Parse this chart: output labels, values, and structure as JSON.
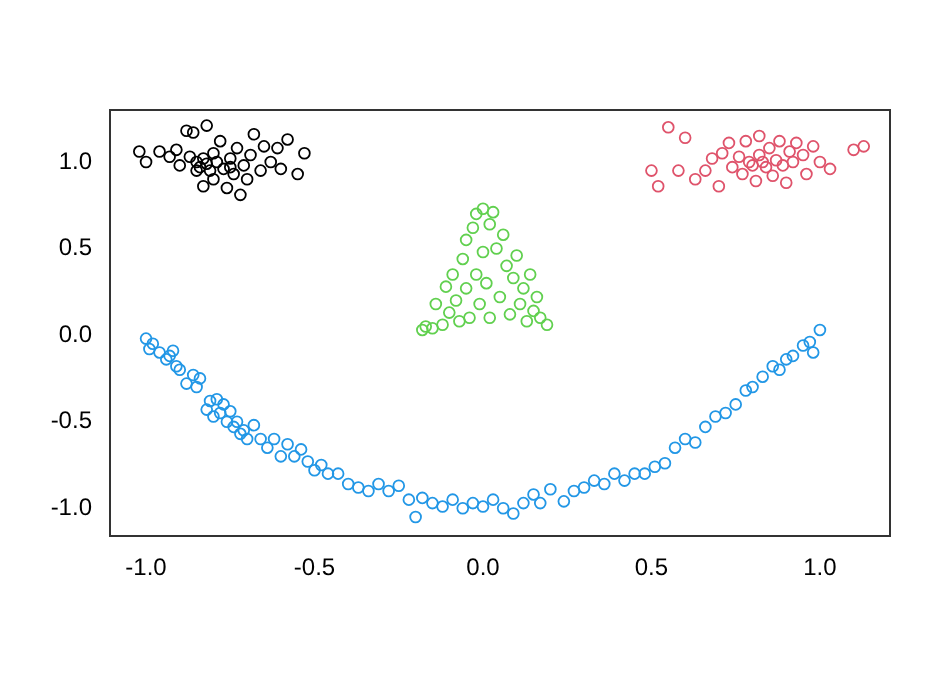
{
  "chart_data": {
    "type": "scatter",
    "marker": "circle",
    "grid": false,
    "legend": false,
    "xlim": [
      -1.107,
      1.208
    ],
    "ylim": [
      -1.16,
      1.3
    ],
    "xticks": [
      {
        "value": -1,
        "label": "-1.0"
      },
      -0.5,
      {
        "value": 0,
        "label": "0.0"
      },
      0.5,
      {
        "value": 1,
        "label": "1.0"
      }
    ],
    "yticks": [
      {
        "value": -1,
        "label": "-1.0"
      },
      -0.5,
      {
        "value": 0,
        "label": "0.0"
      },
      0.5,
      {
        "value": 1,
        "label": "1.0"
      }
    ],
    "series": [
      {
        "color": "#000000",
        "x": [
          -1.02,
          -1.0,
          -0.96,
          -0.93,
          -0.91,
          -0.9,
          -0.88,
          -0.87,
          -0.86,
          -0.85,
          -0.85,
          -0.84,
          -0.83,
          -0.83,
          -0.82,
          -0.82,
          -0.81,
          -0.8,
          -0.8,
          -0.79,
          -0.78,
          -0.77,
          -0.76,
          -0.75,
          -0.75,
          -0.74,
          -0.73,
          -0.72,
          -0.71,
          -0.7,
          -0.69,
          -0.68,
          -0.66,
          -0.65,
          -0.63,
          -0.61,
          -0.6,
          -0.58,
          -0.55,
          -0.53
        ],
        "values": [
          1.06,
          1.0,
          1.06,
          1.03,
          1.07,
          0.98,
          1.18,
          1.03,
          1.17,
          1.0,
          0.95,
          0.97,
          1.02,
          0.86,
          1.21,
          0.99,
          0.95,
          1.05,
          0.9,
          1.0,
          1.12,
          0.96,
          0.85,
          1.02,
          0.97,
          0.93,
          1.08,
          0.81,
          0.98,
          0.9,
          1.04,
          1.16,
          0.95,
          1.09,
          1.0,
          1.08,
          0.96,
          1.13,
          0.93,
          1.05
        ]
      },
      {
        "color": "#df536b",
        "x": [
          0.5,
          0.52,
          0.55,
          0.58,
          0.6,
          0.63,
          0.66,
          0.68,
          0.7,
          0.71,
          0.73,
          0.74,
          0.76,
          0.77,
          0.78,
          0.79,
          0.8,
          0.81,
          0.82,
          0.82,
          0.83,
          0.84,
          0.85,
          0.86,
          0.87,
          0.88,
          0.89,
          0.9,
          0.91,
          0.92,
          0.93,
          0.95,
          0.96,
          0.98,
          1.0,
          1.03,
          1.1,
          1.13
        ],
        "values": [
          0.95,
          0.86,
          1.2,
          0.95,
          1.14,
          0.9,
          0.95,
          1.02,
          0.86,
          1.05,
          1.11,
          0.97,
          1.03,
          0.93,
          1.12,
          1.0,
          0.98,
          0.89,
          1.15,
          1.04,
          1.0,
          0.97,
          1.08,
          0.92,
          1.01,
          1.12,
          0.98,
          0.88,
          1.06,
          1.0,
          1.11,
          1.04,
          0.93,
          1.09,
          1.0,
          0.96,
          1.07,
          1.09
        ]
      },
      {
        "color": "#61d04f",
        "x": [
          -0.18,
          -0.17,
          -0.15,
          -0.14,
          -0.12,
          -0.11,
          -0.1,
          -0.09,
          -0.08,
          -0.07,
          -0.06,
          -0.05,
          -0.05,
          -0.04,
          -0.03,
          -0.02,
          -0.02,
          -0.01,
          0.0,
          0.0,
          0.01,
          0.02,
          0.02,
          0.03,
          0.04,
          0.05,
          0.06,
          0.07,
          0.08,
          0.09,
          0.1,
          0.11,
          0.12,
          0.13,
          0.14,
          0.15,
          0.16,
          0.17,
          0.19
        ],
        "values": [
          0.03,
          0.05,
          0.04,
          0.18,
          0.06,
          0.28,
          0.13,
          0.35,
          0.2,
          0.08,
          0.44,
          0.27,
          0.55,
          0.1,
          0.62,
          0.35,
          0.7,
          0.18,
          0.73,
          0.48,
          0.3,
          0.64,
          0.1,
          0.71,
          0.5,
          0.22,
          0.58,
          0.4,
          0.12,
          0.33,
          0.46,
          0.18,
          0.27,
          0.08,
          0.35,
          0.14,
          0.22,
          0.1,
          0.06
        ]
      },
      {
        "color": "#2297e6",
        "x": [
          -1.0,
          -0.99,
          -0.98,
          -0.96,
          -0.94,
          -0.93,
          -0.92,
          -0.91,
          -0.9,
          -0.88,
          -0.86,
          -0.85,
          -0.84,
          -0.82,
          -0.81,
          -0.8,
          -0.79,
          -0.78,
          -0.77,
          -0.76,
          -0.75,
          -0.74,
          -0.73,
          -0.72,
          -0.71,
          -0.7,
          -0.68,
          -0.66,
          -0.64,
          -0.62,
          -0.6,
          -0.58,
          -0.56,
          -0.54,
          -0.52,
          -0.5,
          -0.48,
          -0.46,
          -0.43,
          -0.4,
          -0.37,
          -0.34,
          -0.31,
          -0.28,
          -0.25,
          -0.22,
          -0.2,
          -0.18,
          -0.15,
          -0.12,
          -0.09,
          -0.06,
          -0.03,
          0.0,
          0.03,
          0.06,
          0.09,
          0.12,
          0.15,
          0.17,
          0.2,
          0.24,
          0.27,
          0.3,
          0.33,
          0.36,
          0.39,
          0.42,
          0.45,
          0.48,
          0.51,
          0.54,
          0.57,
          0.6,
          0.63,
          0.66,
          0.69,
          0.72,
          0.75,
          0.78,
          0.8,
          0.83,
          0.86,
          0.88,
          0.9,
          0.92,
          0.95,
          0.97,
          0.98,
          1.0
        ],
        "values": [
          -0.02,
          -0.08,
          -0.05,
          -0.1,
          -0.14,
          -0.12,
          -0.09,
          -0.18,
          -0.2,
          -0.28,
          -0.23,
          -0.3,
          -0.25,
          -0.43,
          -0.38,
          -0.47,
          -0.37,
          -0.45,
          -0.4,
          -0.5,
          -0.44,
          -0.53,
          -0.5,
          -0.57,
          -0.55,
          -0.6,
          -0.52,
          -0.6,
          -0.65,
          -0.6,
          -0.7,
          -0.63,
          -0.7,
          -0.66,
          -0.73,
          -0.78,
          -0.75,
          -0.8,
          -0.8,
          -0.86,
          -0.88,
          -0.9,
          -0.86,
          -0.9,
          -0.87,
          -0.95,
          -1.05,
          -0.94,
          -0.97,
          -0.99,
          -0.95,
          -1.0,
          -0.97,
          -0.99,
          -0.95,
          -1.0,
          -1.03,
          -0.97,
          -0.92,
          -0.97,
          -0.89,
          -0.96,
          -0.9,
          -0.88,
          -0.84,
          -0.86,
          -0.8,
          -0.84,
          -0.8,
          -0.8,
          -0.76,
          -0.74,
          -0.65,
          -0.6,
          -0.62,
          -0.53,
          -0.47,
          -0.45,
          -0.4,
          -0.32,
          -0.3,
          -0.24,
          -0.18,
          -0.2,
          -0.14,
          -0.12,
          -0.06,
          -0.04,
          -0.1,
          0.03
        ]
      }
    ]
  }
}
